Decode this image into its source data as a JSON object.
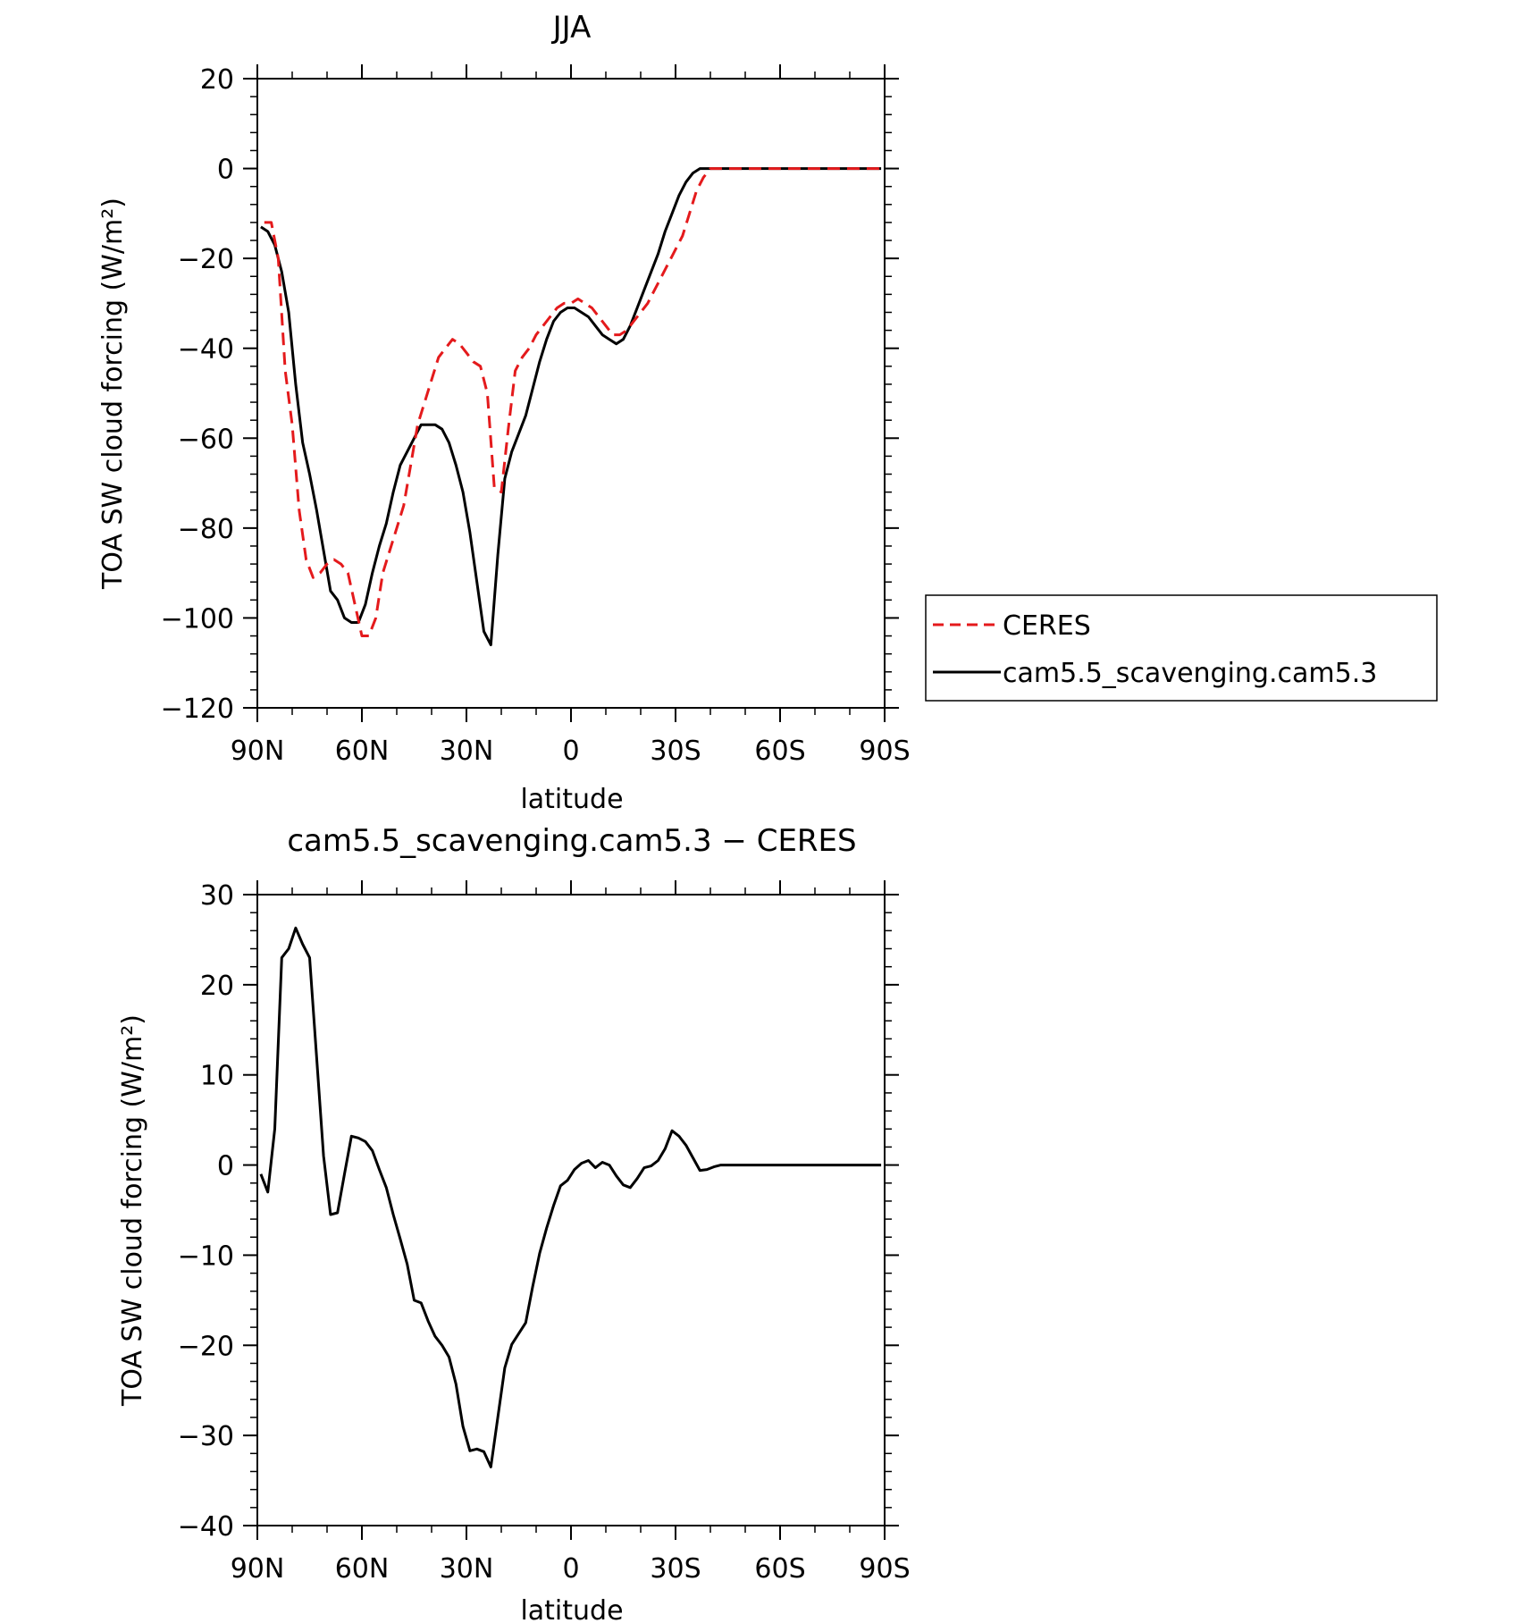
{
  "chart_data": [
    {
      "type": "line",
      "title": "JJA",
      "xlabel": "latitude",
      "ylabel": "TOA SW cloud forcing (W/m²)",
      "xlim": [
        90,
        -90
      ],
      "ylim": [
        -120,
        20
      ],
      "xtick_values": [
        90,
        60,
        30,
        0,
        -30,
        -60,
        -90
      ],
      "xtick_labels": [
        "90N",
        "60N",
        "30N",
        "0",
        "30S",
        "60S",
        "90S"
      ],
      "yticks": [
        20,
        0,
        -20,
        -40,
        -60,
        -80,
        -100,
        -120
      ],
      "ytick_labels": [
        "20",
        "0",
        "−20",
        "−40",
        "−60",
        "−80",
        "−100",
        "−120"
      ],
      "legend_position": "right",
      "series": [
        {
          "name": "CERES",
          "color": "#e41a1c",
          "dash": "dashed",
          "x": [
            88,
            86,
            84,
            82,
            80,
            78,
            76,
            74,
            72,
            70,
            68,
            66,
            64,
            62,
            60,
            58,
            56,
            54,
            52,
            50,
            48,
            46,
            44,
            42,
            40,
            38,
            36,
            34,
            32,
            30,
            28,
            26,
            24,
            22,
            20,
            18,
            16,
            14,
            12,
            10,
            8,
            6,
            4,
            2,
            0,
            -2,
            -4,
            -6,
            -8,
            -10,
            -12,
            -14,
            -16,
            -18,
            -20,
            -22,
            -24,
            -26,
            -28,
            -30,
            -32,
            -34,
            -36,
            -38,
            -40,
            -42,
            -44,
            -46,
            -48,
            -50,
            -52,
            -54,
            -56,
            -58,
            -60,
            -62,
            -64,
            -66,
            -68,
            -70,
            -72,
            -74,
            -76,
            -78,
            -80,
            -82,
            -84,
            -86,
            -88,
            -90
          ],
          "y": [
            -12,
            -12,
            -20,
            -45,
            -57,
            -76,
            -87,
            -91,
            -90,
            -88,
            -87,
            -88,
            -90,
            -97,
            -104,
            -104,
            -100,
            -90,
            -85,
            -80,
            -75,
            -66,
            -57,
            -52,
            -47,
            -42,
            -40,
            -38,
            -39,
            -41,
            -43,
            -44,
            -50,
            -71,
            -72,
            -58,
            -45,
            -42,
            -40,
            -37,
            -35,
            -33,
            -31,
            -30,
            -30,
            -29,
            -30,
            -31,
            -33,
            -35,
            -37,
            -37,
            -36,
            -34,
            -32,
            -30,
            -27,
            -24,
            -21,
            -18,
            -15,
            -10,
            -5,
            -2,
            0,
            0,
            0,
            0,
            0,
            0,
            0,
            0,
            0,
            0,
            0,
            0,
            0,
            0,
            0,
            0,
            0,
            0,
            0,
            0,
            0,
            0,
            0,
            0,
            0,
            0
          ]
        },
        {
          "name": "cam5.5_scavenging.cam5.3",
          "color": "#000000",
          "dash": "solid",
          "x": [
            89,
            87,
            85,
            83,
            81,
            79,
            77,
            75,
            73,
            71,
            69,
            67,
            65,
            63,
            61,
            59,
            57,
            55,
            53,
            51,
            49,
            47,
            45,
            43,
            41,
            39,
            37,
            35,
            33,
            31,
            29,
            27,
            25,
            23,
            21,
            19,
            17,
            15,
            13,
            11,
            9,
            7,
            5,
            3,
            1,
            -1,
            -3,
            -5,
            -7,
            -9,
            -11,
            -13,
            -15,
            -17,
            -19,
            -21,
            -23,
            -25,
            -27,
            -29,
            -31,
            -33,
            -35,
            -37,
            -39,
            -41,
            -43,
            -45,
            -47,
            -49,
            -51,
            -53,
            -55,
            -57,
            -59,
            -61,
            -63,
            -65,
            -67,
            -69,
            -71,
            -73,
            -75,
            -77,
            -79,
            -81,
            -83,
            -85,
            -87,
            -89
          ],
          "y": [
            -13,
            -14,
            -17,
            -23,
            -32,
            -48,
            -61,
            -68,
            -76,
            -85,
            -94,
            -96,
            -100,
            -101,
            -101,
            -97,
            -90,
            -84,
            -79,
            -72,
            -66,
            -63,
            -60,
            -57,
            -57,
            -57,
            -58,
            -61,
            -66,
            -72,
            -81,
            -92,
            -103,
            -106,
            -86,
            -69,
            -63,
            -59,
            -55,
            -49,
            -43,
            -38,
            -34,
            -32,
            -31,
            -31,
            -32,
            -33,
            -35,
            -37,
            -38,
            -39,
            -38,
            -35,
            -31,
            -27,
            -23,
            -19,
            -14,
            -10,
            -6,
            -3,
            -1,
            0,
            0,
            0,
            0,
            0,
            0,
            0,
            0,
            0,
            0,
            0,
            0,
            0,
            0,
            0,
            0,
            0,
            0,
            0,
            0,
            0,
            0,
            0,
            0,
            0,
            0,
            0
          ]
        }
      ]
    },
    {
      "type": "line",
      "title": "cam5.5_scavenging.cam5.3 − CERES",
      "xlabel": "latitude",
      "ylabel": "TOA SW cloud forcing (W/m²)",
      "xlim": [
        90,
        -90
      ],
      "ylim": [
        -40,
        30
      ],
      "xtick_values": [
        90,
        60,
        30,
        0,
        -30,
        -60,
        -90
      ],
      "xtick_labels": [
        "90N",
        "60N",
        "30N",
        "0",
        "30S",
        "60S",
        "90S"
      ],
      "yticks": [
        30,
        20,
        10,
        0,
        -10,
        -20,
        -30,
        -40
      ],
      "ytick_labels": [
        "30",
        "20",
        "10",
        "0",
        "−10",
        "−20",
        "−30",
        "−40"
      ],
      "series": [
        {
          "color": "#000000",
          "dash": "solid",
          "x": [
            89,
            87,
            85,
            83,
            81,
            79,
            77,
            75,
            73,
            71,
            69,
            67,
            65,
            63,
            61,
            59,
            57,
            55,
            53,
            51,
            49,
            47,
            45,
            43,
            41,
            39,
            37,
            35,
            33,
            31,
            29,
            27,
            25,
            23,
            21,
            19,
            17,
            15,
            13,
            11,
            9,
            7,
            5,
            3,
            1,
            -1,
            -3,
            -5,
            -7,
            -9,
            -11,
            -13,
            -15,
            -17,
            -19,
            -21,
            -23,
            -25,
            -27,
            -29,
            -31,
            -33,
            -35,
            -37,
            -39,
            -41,
            -43,
            -45,
            -47,
            -49,
            -51,
            -53,
            -55,
            -57,
            -59,
            -61,
            -63,
            -65,
            -67,
            -69,
            -71,
            -73,
            -75,
            -77,
            -79,
            -81,
            -83,
            -85,
            -87,
            -89
          ],
          "y": [
            -1,
            -3,
            4,
            23,
            24,
            26.3,
            24.5,
            23,
            12,
            1,
            -5.5,
            -5.3,
            -1,
            3.2,
            3,
            2.6,
            1.6,
            -0.5,
            -2.5,
            -5.5,
            -8.2,
            -11,
            -15,
            -15.3,
            -17.3,
            -19,
            -20,
            -21.3,
            -24.3,
            -29,
            -31.7,
            -31.5,
            -31.8,
            -33.5,
            -28,
            -22.5,
            -19.9,
            -18.7,
            -17.5,
            -13.5,
            -9.8,
            -7,
            -4.5,
            -2.3,
            -1.7,
            -0.5,
            0.2,
            0.5,
            -0.3,
            0.3,
            0,
            -1.2,
            -2.2,
            -2.5,
            -1.5,
            -0.3,
            -0.1,
            0.5,
            1.8,
            3.8,
            3.2,
            2.2,
            0.8,
            -0.6,
            -0.5,
            -0.2,
            0,
            0,
            0,
            0,
            0,
            0,
            0,
            0,
            0,
            0,
            0,
            0,
            0,
            0,
            0,
            0,
            0,
            0,
            0,
            0,
            0,
            0,
            0,
            0
          ]
        }
      ]
    }
  ]
}
